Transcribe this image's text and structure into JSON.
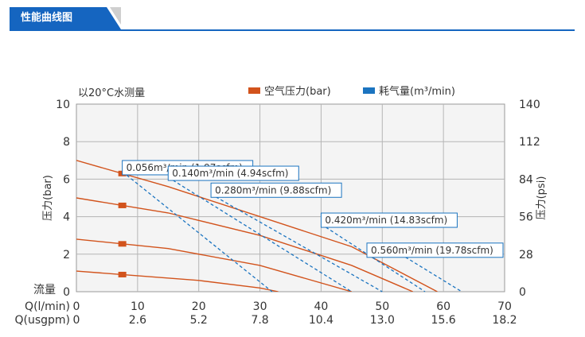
{
  "header": {
    "title": "性能曲线图"
  },
  "chart_data": {
    "type": "line",
    "note": "以20°C水测量",
    "legend": [
      {
        "label": "空气压力(bar)",
        "color": "#d2531c"
      },
      {
        "label": "耗气量(m³/min)",
        "color": "#1b74c0"
      }
    ],
    "y_left": {
      "label": "压力(bar)",
      "range": [
        0,
        10
      ],
      "ticks": [
        "0",
        "2",
        "4",
        "6",
        "8",
        "10"
      ]
    },
    "y_right": {
      "label": "压力(psi)",
      "range": [
        0,
        140
      ],
      "ticks": [
        "0",
        "28",
        "56",
        "84",
        "112",
        "140"
      ]
    },
    "x": {
      "corner_label": "流量",
      "range": [
        0,
        70
      ],
      "rows": [
        {
          "label": "Q(l/min)",
          "ticks": [
            "0",
            "10",
            "20",
            "30",
            "40",
            "50",
            "60",
            "70"
          ]
        },
        {
          "label": "Q(usgpm)",
          "ticks": [
            "0",
            "2.6",
            "5.2",
            "7.8",
            "10.4",
            "13.0",
            "15.6",
            "18.2"
          ]
        }
      ]
    },
    "pressure_series": [
      {
        "name": "",
        "marker_x": 7.5,
        "points": [
          [
            0,
            7.0
          ],
          [
            15,
            5.6
          ],
          [
            30,
            4.0
          ],
          [
            45,
            2.4
          ],
          [
            59,
            0
          ]
        ]
      },
      {
        "name": "",
        "marker_x": 7.5,
        "points": [
          [
            0,
            5.0
          ],
          [
            15,
            4.2
          ],
          [
            30,
            3.0
          ],
          [
            45,
            1.4
          ],
          [
            55,
            0
          ]
        ]
      },
      {
        "name": "",
        "marker_x": 7.5,
        "points": [
          [
            0,
            2.8
          ],
          [
            15,
            2.3
          ],
          [
            30,
            1.4
          ],
          [
            45,
            0
          ]
        ]
      },
      {
        "name": "",
        "marker_x": 7.5,
        "points": [
          [
            0,
            1.1
          ],
          [
            20,
            0.6
          ],
          [
            30,
            0.2
          ],
          [
            33,
            0
          ]
        ]
      }
    ],
    "air_consumption_series": [
      {
        "label": "0.056m³/min (1.97scfm)",
        "points": [
          [
            7.5,
            6.4
          ],
          [
            32,
            0
          ]
        ]
      },
      {
        "label": "0.140m³/min (4.94scfm)",
        "points": [
          [
            15,
            6.1
          ],
          [
            45,
            0
          ]
        ]
      },
      {
        "label": "0.280m³/min (9.88scfm)",
        "points": [
          [
            22,
            5.2
          ],
          [
            50,
            0
          ]
        ]
      },
      {
        "label": "0.420m³/min (14.83scfm)",
        "points": [
          [
            40,
            3.6
          ],
          [
            57,
            0
          ]
        ]
      },
      {
        "label": "0.560m³/min (19.78scfm)",
        "points": [
          [
            53,
            2.0
          ],
          [
            63,
            0
          ]
        ]
      }
    ]
  }
}
